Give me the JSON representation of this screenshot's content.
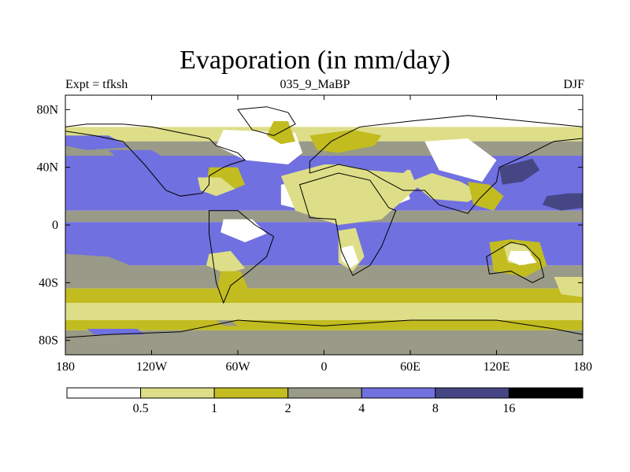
{
  "title": "Evaporation (in mm/day)",
  "subtitle_left": "Expt = tfksh",
  "subtitle_center": "035_9_MaBP",
  "subtitle_right": "DJF",
  "chart_data": {
    "type": "heatmap",
    "title": "Evaporation (in mm/day)",
    "units": "mm/day",
    "experiment": "Expt = tfksh",
    "period": "035_9_MaBP",
    "season": "DJF",
    "x_range": [
      -180,
      180
    ],
    "y_range": [
      -90,
      90
    ],
    "x_ticks": [
      {
        "value": -180,
        "label": "180"
      },
      {
        "value": -120,
        "label": "120W"
      },
      {
        "value": -60,
        "label": "60W"
      },
      {
        "value": 0,
        "label": "0"
      },
      {
        "value": 60,
        "label": "60E"
      },
      {
        "value": 120,
        "label": "120E"
      },
      {
        "value": 180,
        "label": "180"
      }
    ],
    "y_ticks": [
      {
        "value": 80,
        "label": "80N"
      },
      {
        "value": 40,
        "label": "40N"
      },
      {
        "value": 0,
        "label": "0"
      },
      {
        "value": -40,
        "label": "40S"
      },
      {
        "value": -80,
        "label": "80S"
      }
    ],
    "colorbar": {
      "levels": [
        0.5,
        1,
        2,
        4,
        8,
        16
      ],
      "level_labels": [
        "0.5",
        "1",
        "2",
        "4",
        "8",
        "16"
      ],
      "colors": [
        "#ffffff",
        "#dede88",
        "#c2bc20",
        "#9a9a88",
        "#7070e0",
        "#464684",
        "#000000"
      ]
    },
    "bands": [
      {
        "lat_min": 68,
        "lat_max": 90,
        "level": 0
      },
      {
        "lat_min": 58,
        "lat_max": 68,
        "level": 1
      },
      {
        "lat_min": 48,
        "lat_max": 58,
        "level": 3
      },
      {
        "lat_min": 10,
        "lat_max": 48,
        "level": 4
      },
      {
        "lat_min": 2,
        "lat_max": 10,
        "level": 3
      },
      {
        "lat_min": -28,
        "lat_max": 2,
        "level": 4
      },
      {
        "lat_min": -44,
        "lat_max": -28,
        "level": 3
      },
      {
        "lat_min": -54,
        "lat_max": -44,
        "level": 2
      },
      {
        "lat_min": -66,
        "lat_max": -54,
        "level": 1
      },
      {
        "lat_min": -73,
        "lat_max": -66,
        "level": 2
      },
      {
        "lat_min": -90,
        "lat_max": -73,
        "level": 3
      }
    ],
    "patches": [
      {
        "lon": [
          -180,
          -150,
          -135,
          -165,
          -180
        ],
        "lat": [
          62,
          62,
          54,
          52,
          55
        ],
        "level": 4
      },
      {
        "lon": [
          -150,
          -120,
          -100,
          -90,
          -80,
          -100,
          -135
        ],
        "lat": [
          52,
          52,
          40,
          36,
          30,
          26,
          38
        ],
        "level": 4
      },
      {
        "lon": [
          -70,
          -20,
          -15,
          -25,
          -55,
          -75
        ],
        "lat": [
          66,
          64,
          50,
          42,
          45,
          55
        ],
        "level": 0
      },
      {
        "lon": [
          -80,
          -60,
          -55,
          -70,
          -82
        ],
        "lat": [
          40,
          40,
          28,
          22,
          28
        ],
        "level": 2
      },
      {
        "lon": [
          -88,
          -72,
          -62,
          -75,
          -86
        ],
        "lat": [
          33,
          33,
          25,
          20,
          24
        ],
        "level": 1
      },
      {
        "lon": [
          -35,
          -25,
          -20,
          -30,
          -40
        ],
        "lat": [
          72,
          72,
          58,
          56,
          62
        ],
        "level": 2
      },
      {
        "lon": [
          -30,
          10,
          40,
          55,
          60,
          35,
          -5,
          -30
        ],
        "lat": [
          28,
          34,
          36,
          32,
          18,
          8,
          8,
          14
        ],
        "level": 0
      },
      {
        "lon": [
          -30,
          0,
          35,
          60,
          65,
          40,
          10,
          -20
        ],
        "lat": [
          34,
          42,
          42,
          38,
          26,
          4,
          0,
          10
        ],
        "level": 1
      },
      {
        "lon": [
          10,
          50,
          60,
          55,
          30,
          12
        ],
        "lat": [
          48,
          48,
          40,
          36,
          38,
          42
        ],
        "level": 4
      },
      {
        "lon": [
          -10,
          20,
          40,
          35,
          10,
          -5
        ],
        "lat": [
          62,
          66,
          62,
          55,
          50,
          52
        ],
        "level": 2
      },
      {
        "lon": [
          -70,
          -50,
          -40,
          -55,
          -72
        ],
        "lat": [
          4,
          4,
          -6,
          -12,
          -5
        ],
        "level": 0
      },
      {
        "lon": [
          -80,
          -65,
          -55,
          -68,
          -82
        ],
        "lat": [
          -20,
          -18,
          -30,
          -34,
          -28
        ],
        "level": 1
      },
      {
        "lon": [
          -72,
          -58,
          -52,
          -62,
          -74
        ],
        "lat": [
          -32,
          -32,
          -46,
          -52,
          -44
        ],
        "level": 2
      },
      {
        "lon": [
          10,
          22,
          28,
          20,
          10
        ],
        "lat": [
          -4,
          -2,
          -22,
          -32,
          -26
        ],
        "level": 1
      },
      {
        "lon": [
          12,
          20,
          24,
          18,
          12
        ],
        "lat": [
          -16,
          -14,
          -26,
          -30,
          -24
        ],
        "level": 0
      },
      {
        "lon": [
          70,
          100,
          120,
          110,
          80
        ],
        "lat": [
          58,
          60,
          45,
          30,
          38
        ],
        "level": 0
      },
      {
        "lon": [
          60,
          75,
          95,
          110,
          100,
          75
        ],
        "lat": [
          30,
          36,
          30,
          22,
          16,
          18
        ],
        "level": 1
      },
      {
        "lon": [
          100,
          115,
          125,
          118,
          104
        ],
        "lat": [
          30,
          28,
          20,
          10,
          14
        ],
        "level": 2
      },
      {
        "lon": [
          120,
          150,
          180,
          180,
          155,
          130,
          120
        ],
        "lat": [
          42,
          48,
          40,
          18,
          14,
          20,
          30
        ],
        "level": 4
      },
      {
        "lon": [
          122,
          145,
          150,
          138,
          124
        ],
        "lat": [
          40,
          46,
          38,
          30,
          28
        ],
        "level": 5
      },
      {
        "lon": [
          155,
          170,
          180,
          180,
          165,
          152
        ],
        "lat": [
          20,
          22,
          22,
          12,
          10,
          14
        ],
        "level": 5
      },
      {
        "lon": [
          115,
          130,
          150,
          155,
          140,
          118
        ],
        "lat": [
          -12,
          -10,
          -12,
          -28,
          -36,
          -32
        ],
        "level": 2
      },
      {
        "lon": [
          125,
          135,
          145,
          140,
          128
        ],
        "lat": [
          -14,
          -12,
          -18,
          -28,
          -26
        ],
        "level": 1
      },
      {
        "lon": [
          130,
          142,
          148,
          136,
          128
        ],
        "lat": [
          -18,
          -18,
          -26,
          -28,
          -24
        ],
        "level": 0
      },
      {
        "lon": [
          160,
          180,
          180,
          165
        ],
        "lat": [
          -36,
          -36,
          -50,
          -48
        ],
        "level": 1
      },
      {
        "lon": [
          -180,
          -150,
          -130,
          -150,
          -180
        ],
        "lat": [
          -20,
          -22,
          -30,
          -38,
          -36
        ],
        "level": 3
      },
      {
        "lon": [
          -165,
          -130,
          -125,
          -160
        ],
        "lat": [
          -72,
          -72,
          -76,
          -76
        ],
        "level": 4
      },
      {
        "lon": [
          -75,
          -65,
          -60,
          -70
        ],
        "lat": [
          -66,
          -66,
          -70,
          -70
        ],
        "level": 3
      }
    ],
    "land_outlines": [
      {
        "name": "north-america",
        "lon": [
          -180,
          -165,
          -140,
          -120,
          -100,
          -80,
          -75,
          -60,
          -55,
          -65,
          -70,
          -80,
          -80,
          -85,
          -100,
          -110,
          -115,
          -125,
          -140,
          -160,
          -180
        ],
        "lat": [
          68,
          70,
          70,
          68,
          64,
          60,
          55,
          50,
          45,
          42,
          40,
          34,
          28,
          22,
          20,
          24,
          30,
          42,
          58,
          62,
          65
        ]
      },
      {
        "name": "south-america",
        "lon": [
          -80,
          -60,
          -48,
          -35,
          -40,
          -52,
          -65,
          -70,
          -75,
          -80
        ],
        "lat": [
          10,
          10,
          0,
          -8,
          -22,
          -32,
          -42,
          -54,
          -40,
          -6
        ]
      },
      {
        "name": "greenland",
        "lon": [
          -60,
          -40,
          -25,
          -20,
          -35,
          -50
        ],
        "lat": [
          80,
          82,
          78,
          70,
          62,
          66
        ]
      },
      {
        "name": "eurasia",
        "lon": [
          -10,
          5,
          25,
          60,
          100,
          140,
          180,
          180,
          160,
          140,
          122,
          120,
          108,
          100,
          80,
          70,
          55,
          40,
          30,
          20,
          10,
          -10
        ],
        "lat": [
          44,
          58,
          68,
          72,
          76,
          72,
          68,
          60,
          58,
          48,
          40,
          30,
          18,
          8,
          14,
          24,
          24,
          32,
          38,
          40,
          42,
          36
        ]
      },
      {
        "name": "africa",
        "lon": [
          -17,
          10,
          32,
          45,
          50,
          40,
          32,
          20,
          12,
          8,
          -10
        ],
        "lat": [
          28,
          36,
          31,
          12,
          10,
          -15,
          -28,
          -35,
          -18,
          4,
          5
        ]
      },
      {
        "name": "australia",
        "lon": [
          113,
          130,
          140,
          150,
          153,
          145,
          130,
          115
        ],
        "lat": [
          -22,
          -12,
          -14,
          -24,
          -36,
          -40,
          -32,
          -34
        ]
      },
      {
        "name": "antarctica",
        "lon": [
          -180,
          -150,
          -100,
          -60,
          0,
          60,
          120,
          160,
          180,
          180,
          -180
        ],
        "lat": [
          -78,
          -76,
          -74,
          -66,
          -70,
          -66,
          -66,
          -72,
          -76,
          -90,
          -90
        ]
      }
    ]
  }
}
